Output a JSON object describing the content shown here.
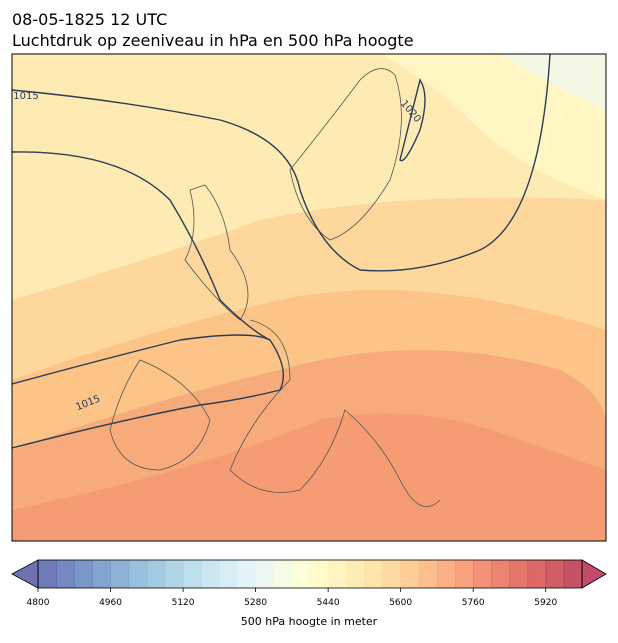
{
  "header": {
    "title": "08-05-1825 12 UTC",
    "subtitle": "Luchtdruk op zeeniveau in hPa en 500 hPa hoogte"
  },
  "map": {
    "contour_labels": [
      "1015",
      "1015",
      "1020"
    ]
  },
  "colorbar": {
    "label": "500 hPa hoogte in meter",
    "xlim": [
      4800,
      6000
    ],
    "step": 40,
    "xticks": [
      4800,
      4960,
      5120,
      5280,
      5440,
      5600,
      5760,
      5920
    ],
    "colormap": [
      "#313695",
      "#4575b4",
      "#74add1",
      "#abd9e9",
      "#e0f3f8",
      "#ffffbf",
      "#fee090",
      "#fdae61",
      "#f46d43",
      "#d73027",
      "#a50026"
    ],
    "alpha": 0.7
  }
}
